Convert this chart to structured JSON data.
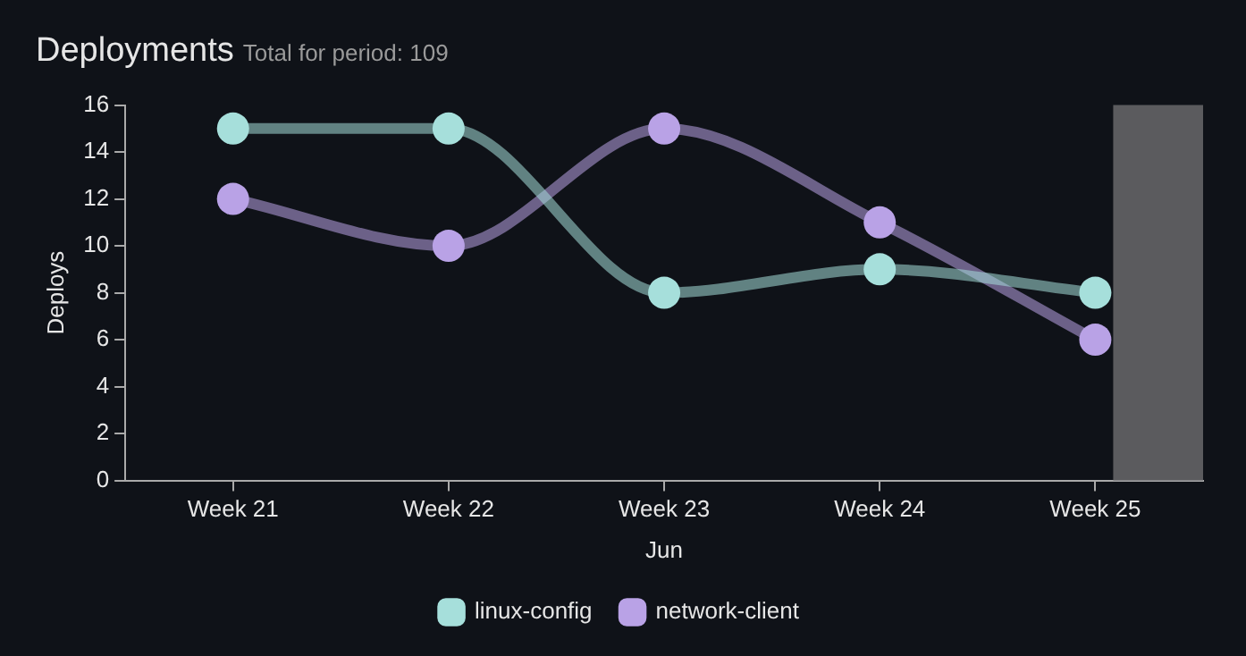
{
  "chart_data": {
    "type": "line",
    "title": "Deployments",
    "subtitle": "Total for period: 109",
    "xlabel": "Jun",
    "ylabel": "Deploys",
    "categories": [
      "Week 21",
      "Week 22",
      "Week 23",
      "Week 24",
      "Week 25"
    ],
    "ylim": [
      0,
      16
    ],
    "yticks": [
      0,
      2,
      4,
      6,
      8,
      10,
      12,
      14,
      16
    ],
    "series": [
      {
        "name": "linux-config",
        "color": "#a6dfdb",
        "values": [
          15,
          15,
          8,
          9,
          8
        ]
      },
      {
        "name": "network-client",
        "color": "#b9a2e6",
        "values": [
          12,
          10,
          15,
          11,
          6
        ]
      }
    ],
    "bands": [
      {
        "axis": "x",
        "from": "Week 25",
        "to": "Week 25",
        "color": "#5b5b5e"
      }
    ],
    "marker": "circle",
    "grid": false,
    "legend": "bottom"
  }
}
